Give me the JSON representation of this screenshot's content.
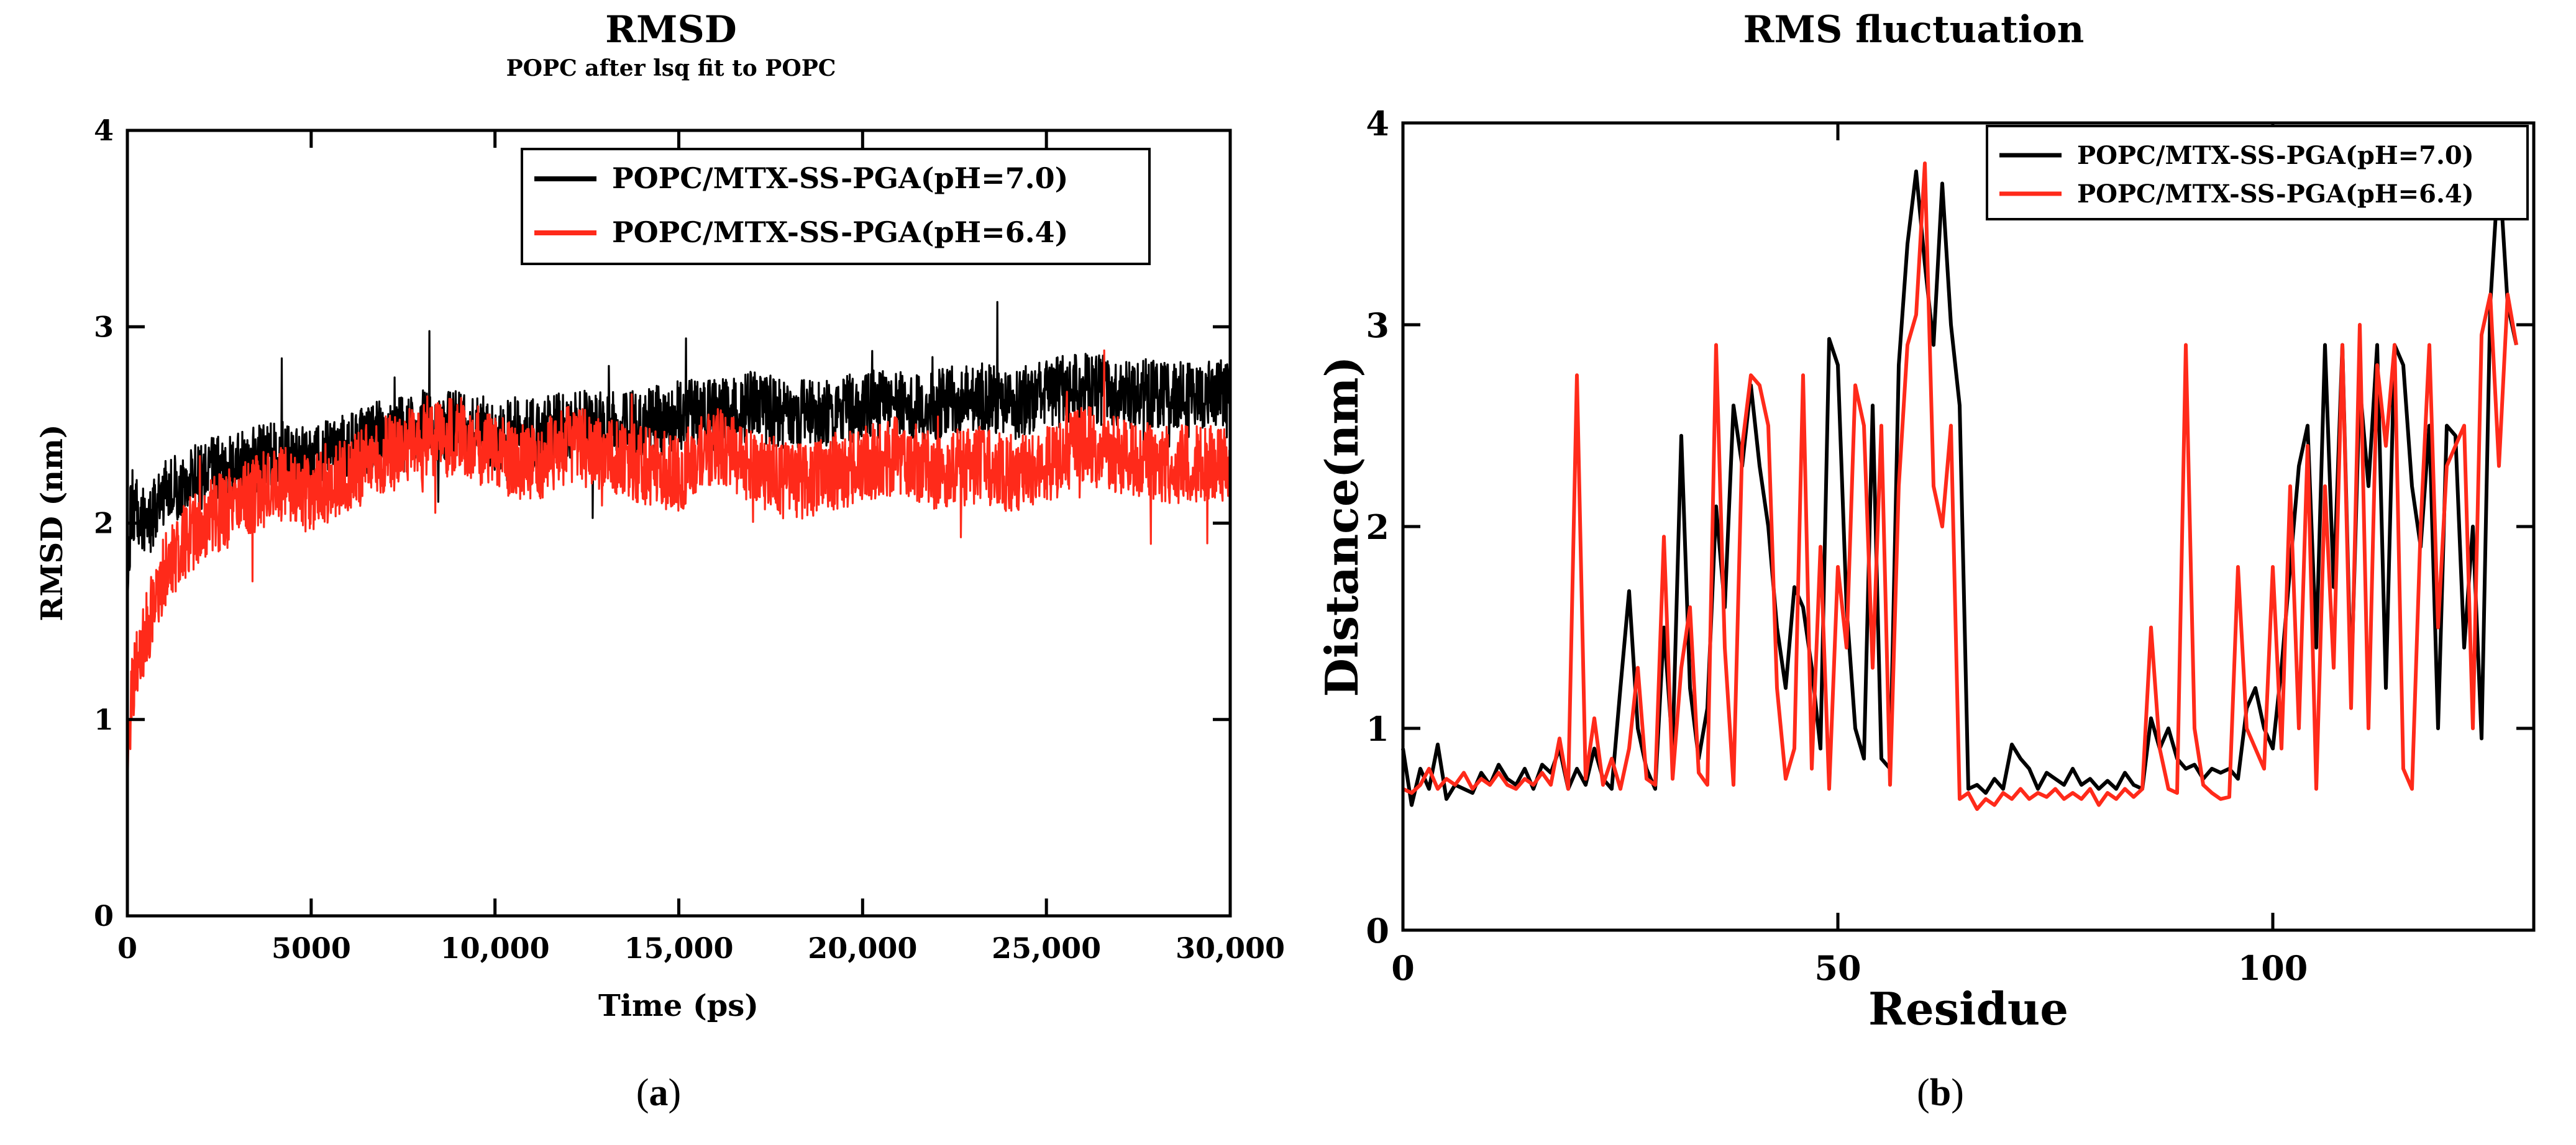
{
  "chart_data": [
    {
      "type": "line",
      "panel_caption": [
        "(",
        "a",
        ")"
      ],
      "title": "RMSD",
      "subtitle": "POPC after lsq fit to POPC",
      "xlabel": "Time (ps)",
      "ylabel": "RMSD (nm)",
      "xlim": [
        0,
        30000
      ],
      "ylim": [
        0,
        4
      ],
      "x_ticks": [
        0,
        5000,
        10000,
        15000,
        20000,
        25000,
        30000
      ],
      "x_tick_labels": [
        "0",
        "5000",
        "10,000",
        "15,000",
        "20,000",
        "25,000",
        "30,000"
      ],
      "y_ticks": [
        0,
        1,
        2,
        3,
        4
      ],
      "y_tick_labels": [
        "0",
        "1",
        "2",
        "3",
        "4"
      ],
      "legend_position": "top-right",
      "series": [
        {
          "name": "POPC/MTX-SS-PGA(pH=7.0)",
          "color": "#000000",
          "x": [
            0,
            100,
            300,
            600,
            1000,
            1500,
            2000,
            3000,
            4000,
            5000,
            6000,
            7000,
            8000,
            9000,
            10000,
            11000,
            12000,
            13000,
            14000,
            15000,
            16000,
            17000,
            18000,
            19000,
            20000,
            21000,
            22000,
            23000,
            24000,
            25000,
            26000,
            27000,
            28000,
            29000,
            30000
          ],
          "y": [
            1.6,
            2.1,
            2.05,
            2.0,
            2.15,
            2.2,
            2.25,
            2.3,
            2.35,
            2.3,
            2.4,
            2.45,
            2.5,
            2.5,
            2.45,
            2.45,
            2.5,
            2.5,
            2.5,
            2.55,
            2.55,
            2.6,
            2.55,
            2.55,
            2.6,
            2.6,
            2.6,
            2.65,
            2.6,
            2.65,
            2.7,
            2.65,
            2.65,
            2.65,
            2.65
          ],
          "noise_amplitude": 0.18
        },
        {
          "name": "POPC/MTX-SS-PGA(pH=6.4)",
          "color": "#ff2a1a",
          "x": [
            0,
            100,
            300,
            600,
            1000,
            1500,
            2000,
            3000,
            4000,
            5000,
            6000,
            7000,
            8000,
            9000,
            10000,
            11000,
            12000,
            13000,
            14000,
            15000,
            16000,
            17000,
            18000,
            19000,
            20000,
            21000,
            22000,
            23000,
            24000,
            25000,
            26000,
            27000,
            28000,
            29000,
            30000
          ],
          "y": [
            0.7,
            1.1,
            1.3,
            1.5,
            1.75,
            1.9,
            2.0,
            2.1,
            2.2,
            2.15,
            2.25,
            2.35,
            2.4,
            2.45,
            2.35,
            2.3,
            2.4,
            2.35,
            2.3,
            2.25,
            2.4,
            2.3,
            2.2,
            2.25,
            2.3,
            2.35,
            2.25,
            2.3,
            2.25,
            2.3,
            2.4,
            2.35,
            2.3,
            2.3,
            2.3
          ],
          "noise_amplitude": 0.2
        }
      ]
    },
    {
      "type": "line",
      "panel_caption": [
        "(",
        "b",
        ")"
      ],
      "title": "RMS fluctuation",
      "xlabel": "Residue",
      "ylabel": "Distance(nm)",
      "xlim": [
        0,
        130
      ],
      "ylim": [
        0,
        4
      ],
      "x_ticks": [
        0,
        50,
        100
      ],
      "x_tick_labels": [
        "0",
        "50",
        "100"
      ],
      "y_ticks": [
        0,
        1,
        2,
        3,
        4
      ],
      "y_tick_labels": [
        "0",
        "1",
        "2",
        "3",
        "4"
      ],
      "legend_position": "top-right",
      "series": [
        {
          "name": "POPC/MTX-SS-PGA(pH=7.0)",
          "color": "#000000",
          "x": [
            0,
            1,
            2,
            3,
            4,
            5,
            6,
            7,
            8,
            9,
            10,
            11,
            12,
            13,
            14,
            15,
            16,
            17,
            18,
            19,
            20,
            21,
            22,
            23,
            24,
            25,
            26,
            27,
            28,
            29,
            30,
            31,
            32,
            33,
            34,
            35,
            36,
            37,
            38,
            39,
            40,
            41,
            42,
            43,
            44,
            45,
            46,
            47,
            48,
            49,
            50,
            51,
            52,
            53,
            54,
            55,
            56,
            57,
            58,
            59,
            60,
            61,
            62,
            63,
            64,
            65,
            66,
            67,
            68,
            69,
            70,
            71,
            72,
            73,
            74,
            75,
            76,
            77,
            78,
            79,
            80,
            81,
            82,
            83,
            84,
            85,
            86,
            87,
            88,
            89,
            90,
            91,
            92,
            93,
            94,
            95,
            96,
            97,
            98,
            99,
            100,
            101,
            102,
            103,
            104,
            105,
            106,
            107,
            108,
            109,
            110,
            111,
            112,
            113,
            114,
            115,
            116,
            117,
            118,
            119,
            120,
            121,
            122,
            123,
            124,
            125,
            126,
            127,
            128
          ],
          "y": [
            0.9,
            0.62,
            0.8,
            0.7,
            0.92,
            0.65,
            0.72,
            0.7,
            0.68,
            0.78,
            0.72,
            0.82,
            0.75,
            0.72,
            0.8,
            0.7,
            0.82,
            0.78,
            0.9,
            0.7,
            0.8,
            0.72,
            0.9,
            0.75,
            0.7,
            1.2,
            1.68,
            1.0,
            0.8,
            0.7,
            1.5,
            0.9,
            2.45,
            1.2,
            0.85,
            1.1,
            2.1,
            1.6,
            2.6,
            2.3,
            2.7,
            2.3,
            2.0,
            1.5,
            1.2,
            1.7,
            1.6,
            1.3,
            0.9,
            2.93,
            2.8,
            1.6,
            1.0,
            0.85,
            2.6,
            0.85,
            0.8,
            2.8,
            3.4,
            3.76,
            3.3,
            2.9,
            3.7,
            3.0,
            2.6,
            0.7,
            0.72,
            0.68,
            0.75,
            0.7,
            0.92,
            0.85,
            0.8,
            0.7,
            0.78,
            0.75,
            0.72,
            0.8,
            0.72,
            0.75,
            0.7,
            0.74,
            0.7,
            0.78,
            0.72,
            0.7,
            1.05,
            0.9,
            1.0,
            0.85,
            0.8,
            0.82,
            0.75,
            0.8,
            0.78,
            0.8,
            0.75,
            1.1,
            1.2,
            1.0,
            0.9,
            1.3,
            1.8,
            2.3,
            2.5,
            1.4,
            2.9,
            1.7,
            2.9,
            1.2,
            2.7,
            2.2,
            2.9,
            1.2,
            2.9,
            2.8,
            2.2,
            1.9,
            2.5,
            1.0,
            2.5,
            2.45,
            1.4,
            2.0,
            0.95,
            3.1,
            3.8,
            3.1,
            2.9
          ],
          "noise_amplitude": 0
        },
        {
          "name": "POPC/MTX-SS-PGA(pH=6.4)",
          "color": "#ff2a1a",
          "x": [
            0,
            1,
            2,
            3,
            4,
            5,
            6,
            7,
            8,
            9,
            10,
            11,
            12,
            13,
            14,
            15,
            16,
            17,
            18,
            19,
            20,
            21,
            22,
            23,
            24,
            25,
            26,
            27,
            28,
            29,
            30,
            31,
            32,
            33,
            34,
            35,
            36,
            37,
            38,
            39,
            40,
            41,
            42,
            43,
            44,
            45,
            46,
            47,
            48,
            49,
            50,
            51,
            52,
            53,
            54,
            55,
            56,
            57,
            58,
            59,
            60,
            61,
            62,
            63,
            64,
            65,
            66,
            67,
            68,
            69,
            70,
            71,
            72,
            73,
            74,
            75,
            76,
            77,
            78,
            79,
            80,
            81,
            82,
            83,
            84,
            85,
            86,
            87,
            88,
            89,
            90,
            91,
            92,
            93,
            94,
            95,
            96,
            97,
            98,
            99,
            100,
            101,
            102,
            103,
            104,
            105,
            106,
            107,
            108,
            109,
            110,
            111,
            112,
            113,
            114,
            115,
            116,
            117,
            118,
            119,
            120,
            121,
            122,
            123,
            124,
            125,
            126,
            127,
            128
          ],
          "y": [
            0.7,
            0.68,
            0.72,
            0.8,
            0.7,
            0.75,
            0.72,
            0.78,
            0.7,
            0.75,
            0.72,
            0.78,
            0.72,
            0.7,
            0.75,
            0.72,
            0.78,
            0.72,
            0.95,
            0.7,
            2.75,
            0.75,
            1.05,
            0.72,
            0.85,
            0.7,
            0.9,
            1.3,
            0.75,
            0.72,
            1.95,
            0.75,
            1.3,
            1.6,
            0.78,
            0.72,
            2.9,
            1.4,
            0.72,
            2.4,
            2.75,
            2.7,
            2.5,
            1.2,
            0.75,
            0.9,
            2.75,
            0.8,
            1.9,
            0.7,
            1.8,
            1.4,
            2.7,
            2.5,
            1.3,
            2.5,
            0.72,
            2.2,
            2.9,
            3.05,
            3.8,
            2.2,
            2.0,
            2.5,
            0.65,
            0.68,
            0.6,
            0.65,
            0.62,
            0.68,
            0.65,
            0.7,
            0.65,
            0.68,
            0.66,
            0.7,
            0.65,
            0.68,
            0.65,
            0.7,
            0.62,
            0.68,
            0.65,
            0.7,
            0.66,
            0.7,
            1.5,
            0.9,
            0.7,
            0.68,
            2.9,
            1.0,
            0.72,
            0.68,
            0.65,
            0.66,
            1.8,
            1.0,
            0.9,
            0.8,
            1.8,
            0.9,
            2.2,
            1.0,
            2.4,
            0.7,
            2.2,
            1.3,
            2.9,
            1.1,
            3.0,
            1.0,
            2.8,
            2.4,
            2.9,
            0.8,
            0.7,
            2.0,
            2.9,
            1.5,
            2.3,
            2.4,
            2.5,
            1.0,
            2.95,
            3.15,
            2.3,
            3.15,
            2.9
          ],
          "noise_amplitude": 0
        }
      ]
    }
  ]
}
